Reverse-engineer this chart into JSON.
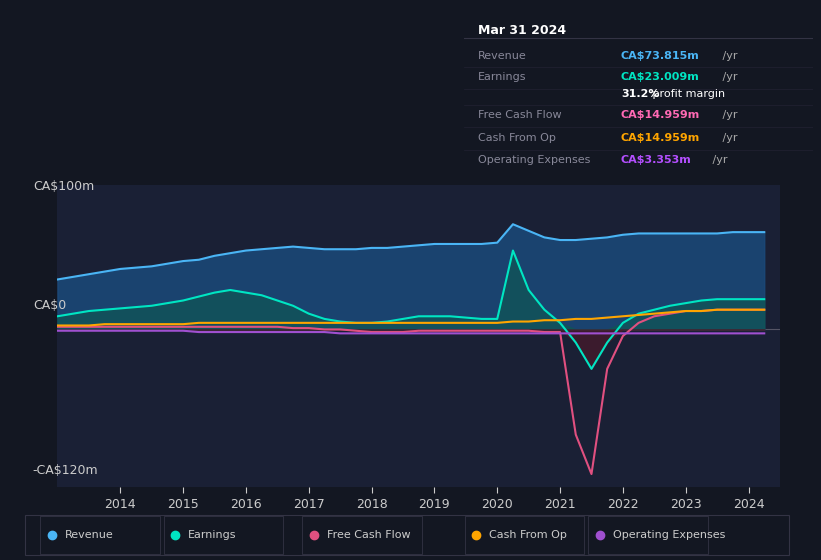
{
  "bg_color": "#131722",
  "plot_bg": "#1a2035",
  "title": "Mar 31 2024",
  "ylabel_top": "CA$100m",
  "ylabel_zero": "CA$0",
  "ylabel_bottom": "-CA$120m",
  "ylim": [
    -120,
    110
  ],
  "xlim_start": 2013.0,
  "xlim_end": 2024.5,
  "xticks": [
    2014,
    2015,
    2016,
    2017,
    2018,
    2019,
    2020,
    2021,
    2022,
    2023,
    2024
  ],
  "info_box": {
    "date": "Mar 31 2024",
    "rows": [
      {
        "label": "Revenue",
        "value": "CA$73.815m /yr",
        "color": "#4ab5f5"
      },
      {
        "label": "Earnings",
        "value": "CA$23.009m /yr",
        "color": "#00e5c3"
      },
      {
        "label": "",
        "value": "31.2% profit margin",
        "color": "#ffffff",
        "bold_part": "31.2%"
      },
      {
        "label": "Free Cash Flow",
        "value": "CA$14.959m /yr",
        "color": "#ff69b4"
      },
      {
        "label": "Cash From Op",
        "value": "CA$14.959m /yr",
        "color": "#ffa500"
      },
      {
        "label": "Operating Expenses",
        "value": "CA$3.353m /yr",
        "color": "#b44fff"
      }
    ]
  },
  "legend": [
    {
      "label": "Revenue",
      "color": "#4ab5f5"
    },
    {
      "label": "Earnings",
      "color": "#00e5c3"
    },
    {
      "label": "Free Cash Flow",
      "color": "#e05080"
    },
    {
      "label": "Cash From Op",
      "color": "#ffa500"
    },
    {
      "label": "Operating Expenses",
      "color": "#a050d0"
    }
  ],
  "years": [
    2013.0,
    2013.25,
    2013.5,
    2013.75,
    2014.0,
    2014.25,
    2014.5,
    2014.75,
    2015.0,
    2015.25,
    2015.5,
    2015.75,
    2016.0,
    2016.25,
    2016.5,
    2016.75,
    2017.0,
    2017.25,
    2017.5,
    2017.75,
    2018.0,
    2018.25,
    2018.5,
    2018.75,
    2019.0,
    2019.25,
    2019.5,
    2019.75,
    2020.0,
    2020.25,
    2020.5,
    2020.75,
    2021.0,
    2021.25,
    2021.5,
    2021.75,
    2022.0,
    2022.25,
    2022.5,
    2022.75,
    2023.0,
    2023.25,
    2023.5,
    2023.75,
    2024.0,
    2024.25
  ],
  "revenue": [
    38,
    40,
    42,
    44,
    46,
    47,
    48,
    50,
    52,
    53,
    56,
    58,
    60,
    61,
    62,
    63,
    62,
    61,
    61,
    61,
    62,
    62,
    63,
    64,
    65,
    65,
    65,
    65,
    66,
    80,
    75,
    70,
    68,
    68,
    69,
    70,
    72,
    73,
    73,
    73,
    73,
    73,
    73,
    74,
    74,
    74
  ],
  "earnings": [
    10,
    12,
    14,
    15,
    16,
    17,
    18,
    20,
    22,
    25,
    28,
    30,
    28,
    26,
    22,
    18,
    12,
    8,
    6,
    5,
    5,
    6,
    8,
    10,
    10,
    10,
    9,
    8,
    8,
    60,
    30,
    15,
    5,
    -10,
    -30,
    -10,
    5,
    12,
    15,
    18,
    20,
    22,
    23,
    23,
    23,
    23
  ],
  "free_cash_flow": [
    2,
    2,
    2,
    2,
    2,
    2,
    2,
    2,
    2,
    2,
    2,
    2,
    2,
    2,
    2,
    1,
    1,
    0,
    0,
    -1,
    -2,
    -2,
    -2,
    -1,
    -1,
    -1,
    -1,
    -1,
    -1,
    -1,
    -1,
    -2,
    -2,
    -80,
    -110,
    -30,
    -5,
    5,
    10,
    12,
    14,
    14,
    15,
    15,
    15,
    15
  ],
  "cash_from_op": [
    3,
    3,
    3,
    4,
    4,
    4,
    4,
    4,
    4,
    5,
    5,
    5,
    5,
    5,
    5,
    5,
    5,
    5,
    5,
    5,
    5,
    5,
    5,
    5,
    5,
    5,
    5,
    5,
    5,
    6,
    6,
    7,
    7,
    8,
    8,
    9,
    10,
    11,
    12,
    13,
    14,
    14,
    15,
    15,
    15,
    15
  ],
  "op_expenses": [
    -1,
    -1,
    -1,
    -1,
    -1,
    -1,
    -1,
    -1,
    -1,
    -2,
    -2,
    -2,
    -2,
    -2,
    -2,
    -2,
    -2,
    -2,
    -3,
    -3,
    -3,
    -3,
    -3,
    -3,
    -3,
    -3,
    -3,
    -3,
    -3,
    -3,
    -3,
    -3,
    -3,
    -3,
    -3,
    -3,
    -3,
    -3,
    -3,
    -3,
    -3,
    -3,
    -3,
    -3,
    -3,
    -3
  ]
}
